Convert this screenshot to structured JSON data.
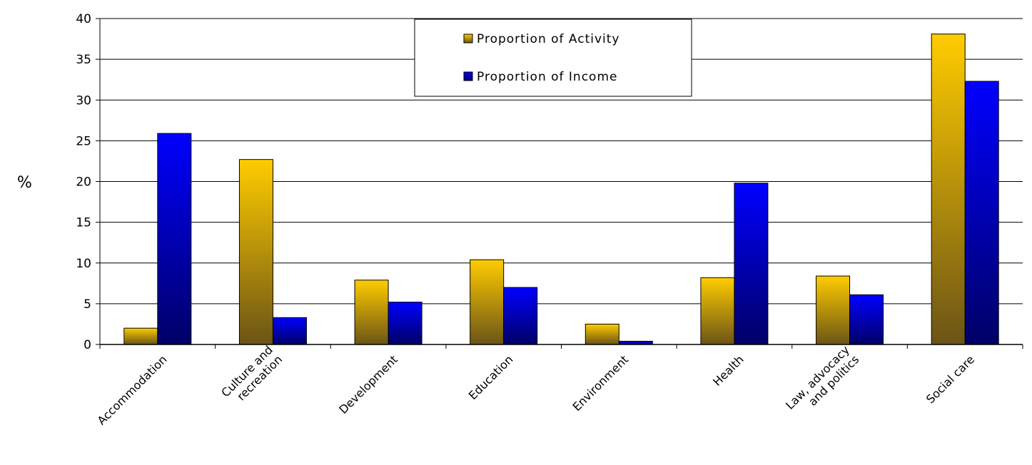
{
  "chart_data": {
    "type": "bar",
    "title": "",
    "xlabel": "",
    "ylabel": "%",
    "ylim": [
      0,
      40
    ],
    "yticks": [
      0,
      5,
      10,
      15,
      20,
      25,
      30,
      35,
      40
    ],
    "grid": true,
    "legend_position": "top-center",
    "categories": [
      [
        "Accommodation"
      ],
      [
        "Culture and",
        "recreation"
      ],
      [
        "Development"
      ],
      [
        "Education"
      ],
      [
        "Environment"
      ],
      [
        "Health"
      ],
      [
        "Law, advocacy",
        "and politics"
      ],
      [
        "Social care"
      ]
    ],
    "series": [
      {
        "name": "Proportion of Activity",
        "color": "#FFCC00",
        "color_dark": "#6B5416",
        "values": [
          2.0,
          22.7,
          7.9,
          10.4,
          2.5,
          8.2,
          8.4,
          38.1
        ]
      },
      {
        "name": "Proportion of Income",
        "color": "#0000FF",
        "color_dark": "#000066",
        "values": [
          25.9,
          3.3,
          5.2,
          7.0,
          0.4,
          19.8,
          6.1,
          32.3
        ]
      }
    ]
  }
}
